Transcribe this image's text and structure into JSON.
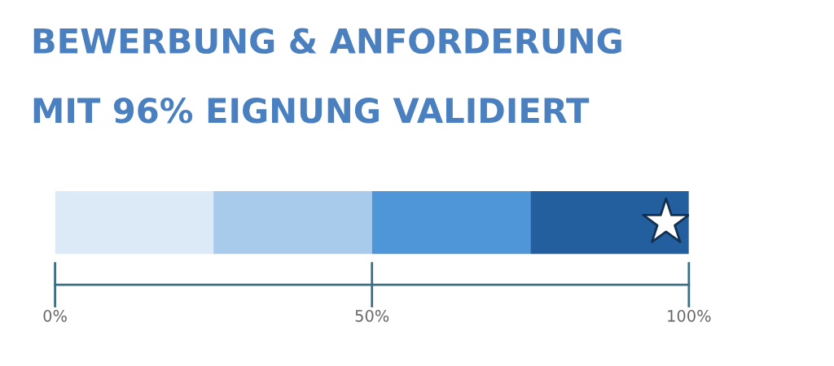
{
  "chart_data": {
    "type": "bar",
    "orientation": "horizontal",
    "stacked": true,
    "title": "BEWERBUNG & ANFORDERUNG",
    "subtitle": "MIT 96% EIGNUNG VALIDIERT",
    "categories": [
      null
    ],
    "series": [
      {
        "color": "#dce9f7",
        "values": [
          25
        ]
      },
      {
        "color": "#a8cbec",
        "values": [
          25
        ]
      },
      {
        "color": "#4f96d9",
        "values": [
          25
        ]
      },
      {
        "color": "#235f9e",
        "values": [
          25
        ]
      }
    ],
    "xlim": [
      0,
      100
    ],
    "xticks": [
      {
        "value": 0,
        "label": "0%"
      },
      {
        "value": 50,
        "label": "50%"
      },
      {
        "value": 100,
        "label": "100%"
      }
    ],
    "grid": false,
    "legend": false
  }
}
